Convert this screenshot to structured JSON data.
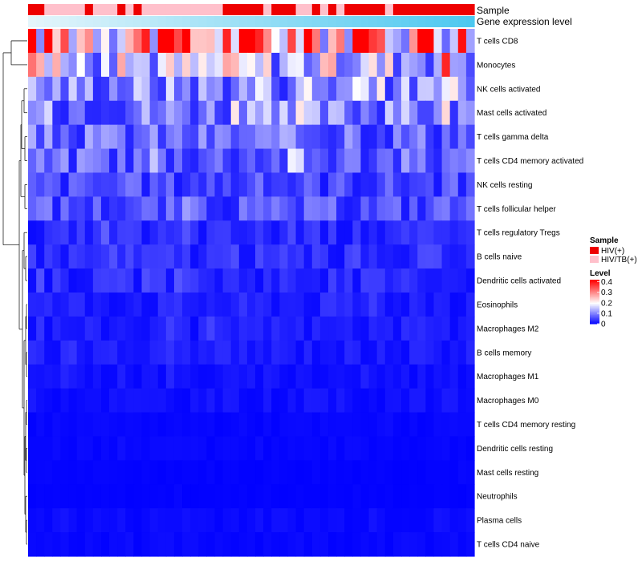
{
  "chart_data": {
    "type": "heatmap",
    "title": "",
    "annotation_labels": [
      "Sample",
      "Gene expression level"
    ],
    "rows": [
      "T cells CD8",
      "Monocytes",
      "NK cells activated",
      "Mast cells activated",
      "T cells gamma delta",
      "T cells CD4 memory activated",
      "NK cells resting",
      "T cells follicular helper",
      "T cells regulatory  Tregs",
      "B cells naive",
      "Dendritic cells activated",
      "Eosinophils",
      "Macrophages M2",
      "B cells memory",
      "Macrophages M1",
      "Macrophages M0",
      "T cells CD4 memory resting",
      "Dendritic cells resting",
      "Mast cells resting",
      "Neutrophils",
      "Plasma cells",
      "T cells CD4 naive"
    ],
    "n_samples": 55,
    "sample_groups": [
      {
        "group": "HIV(+)",
        "count": 2
      },
      {
        "group": "HIV/TB(+)",
        "count": 5
      },
      {
        "group": "HIV(+)",
        "count": 1
      },
      {
        "group": "HIV/TB(+)",
        "count": 3
      },
      {
        "group": "HIV(+)",
        "count": 1
      },
      {
        "group": "HIV/TB(+)",
        "count": 1
      },
      {
        "group": "HIV(+)",
        "count": 1
      },
      {
        "group": "HIV/TB(+)",
        "count": 10
      },
      {
        "group": "HIV(+)",
        "count": 5
      },
      {
        "group": "HIV/TB(+)",
        "count": 1
      },
      {
        "group": "HIV(+)",
        "count": 3
      },
      {
        "group": "HIV/TB(+)",
        "count": 2
      },
      {
        "group": "HIV(+)",
        "count": 1
      },
      {
        "group": "HIV/TB(+)",
        "count": 1
      },
      {
        "group": "HIV(+)",
        "count": 1
      },
      {
        "group": "HIV/TB(+)",
        "count": 1
      },
      {
        "group": "HIV(+)",
        "count": 5
      },
      {
        "group": "HIV/TB(+)",
        "count": 1
      },
      {
        "group": "HIV(+)",
        "count": 10
      }
    ],
    "sample_colors": {
      "HIV(+)": "#ee0000",
      "HIV/TB(+)": "#ffc0cb"
    },
    "expression_gradient": [
      "#e4f5fb",
      "#4dc8f0"
    ],
    "row_mean_levels": [
      0.3,
      0.16,
      0.11,
      0.1,
      0.08,
      0.075,
      0.055,
      0.06,
      0.03,
      0.035,
      0.03,
      0.025,
      0.02,
      0.02,
      0.012,
      0.012,
      0.005,
      0.005,
      0.003,
      0.002,
      0.008,
      0.006
    ],
    "legend": {
      "sample_title": "Sample",
      "sample_entries": [
        "HIV(+)",
        "HIV/TB(+)"
      ],
      "level_title": "Level",
      "level_ticks": [
        "0.4",
        "0.3",
        "0.2",
        "0.1",
        "0"
      ],
      "level_tick_values": [
        0.4,
        0.3,
        0.2,
        0.1,
        0
      ],
      "level_range": [
        0,
        0.42
      ]
    },
    "colors": {
      "low": "#0000ff",
      "mid": "#ffffff",
      "high": "#ff0000",
      "mid_value": 0.2
    }
  }
}
